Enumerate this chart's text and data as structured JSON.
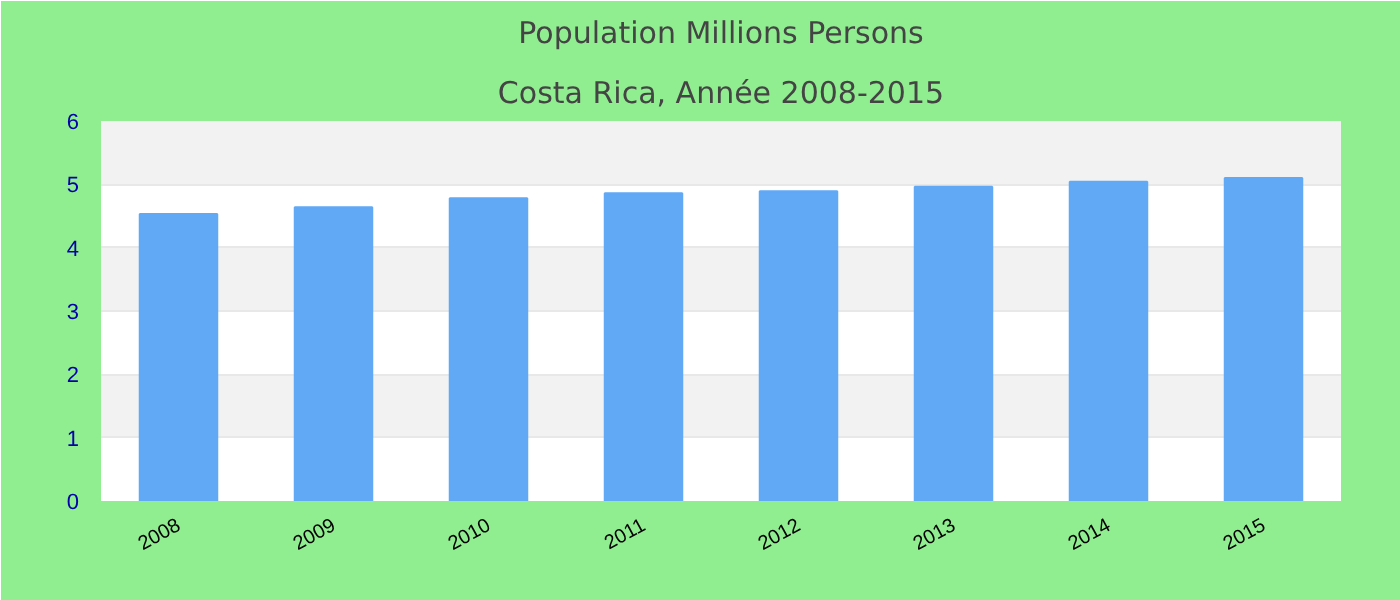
{
  "chart_data": {
    "type": "bar",
    "title": "Population Millions Persons",
    "subtitle": "Costa Rica, Année 2008-2015",
    "categories": [
      "2008",
      "2009",
      "2010",
      "2011",
      "2012",
      "2013",
      "2014",
      "2015"
    ],
    "values": [
      4.53,
      4.64,
      4.78,
      4.86,
      4.89,
      4.96,
      5.04,
      5.1
    ],
    "color": "#61a9f5",
    "ylim": [
      0,
      6
    ],
    "yticks": [
      0,
      1,
      2,
      3,
      4,
      5,
      6
    ],
    "grid": "y"
  }
}
